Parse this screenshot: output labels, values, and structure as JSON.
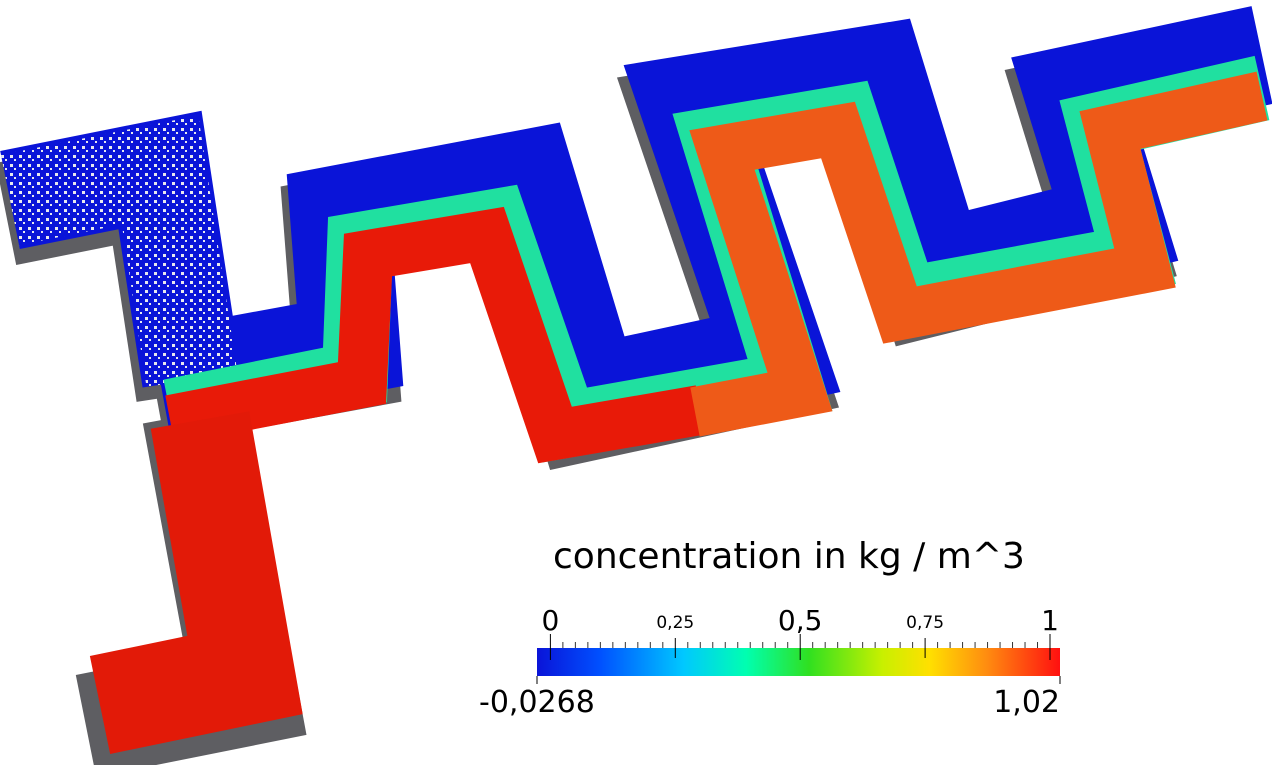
{
  "colorbar": {
    "title": "concentration in kg / m^3",
    "range": [
      {
        "value": -0.0268,
        "label": "-0,0268"
      },
      {
        "value": 1.02,
        "label": "1,02"
      }
    ],
    "ticks": [
      {
        "value": 0,
        "label": "0"
      },
      {
        "value": 0.25,
        "label": "0,25"
      },
      {
        "value": 0.5,
        "label": "0,5"
      },
      {
        "value": 0.75,
        "label": "0,75"
      },
      {
        "value": 1,
        "label": "1"
      }
    ]
  }
}
